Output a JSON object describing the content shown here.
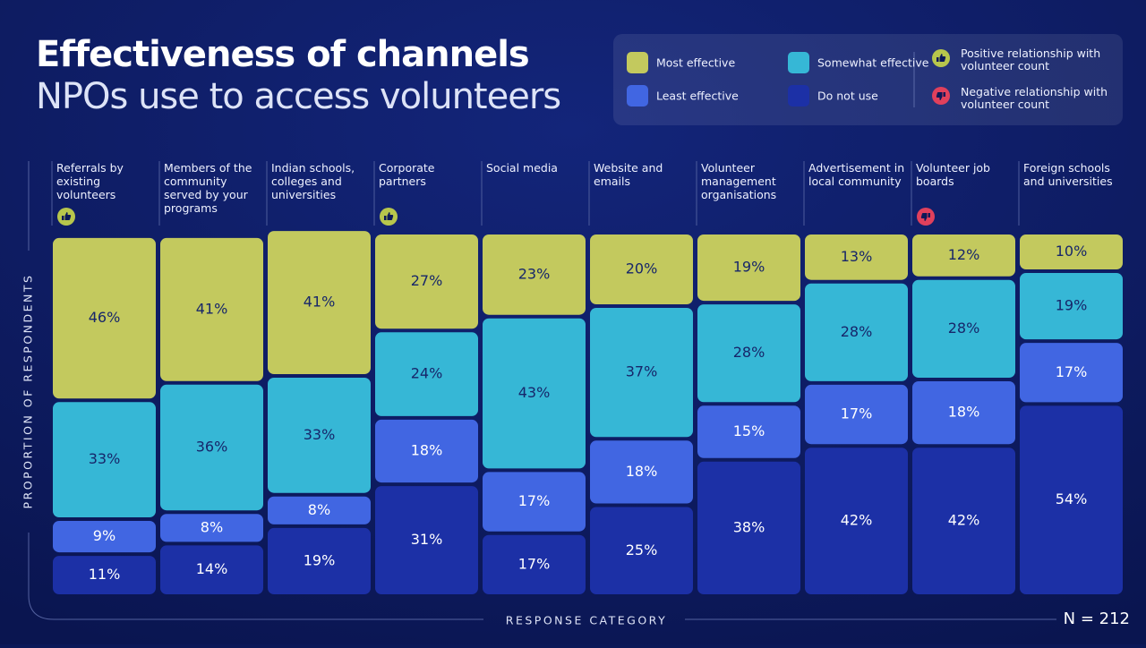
{
  "chart_data": {
    "type": "stacked-bar",
    "title": "Effectiveness of channels",
    "subtitle": "NPOs use to access volunteers",
    "y_label": "PROPORTION OF RESPONDENTS",
    "x_label": "RESPONSE CATEGORY",
    "note": "N = 212",
    "categories": [
      "Referrals by existing volunteers",
      "Members of the community served by your programs",
      "Indian schools, colleges and universities",
      "Corporate partners",
      "Social media",
      "Website and emails",
      "Volunteer management organisations",
      "Advertisement in local community",
      "Volunteer job boards",
      "Foreign schools and universities"
    ],
    "relationships": [
      "positive",
      null,
      null,
      "positive",
      null,
      null,
      null,
      null,
      "negative",
      null
    ],
    "relationship_legend": [
      {
        "kind": "positive",
        "label": "Positive relationship with volunteer count",
        "color": "#b7c64c"
      },
      {
        "kind": "negative",
        "label": "Negative relationship with volunteer count",
        "color": "#e0405c"
      }
    ],
    "ylim": [
      0,
      100
    ],
    "series": [
      {
        "name": "Most effective",
        "color": "#c3c95e",
        "values": [
          46,
          41,
          41,
          27,
          23,
          20,
          19,
          13,
          12,
          10
        ],
        "value_labels": [
          "46%",
          "41%",
          "41%",
          "27%",
          "23%",
          "20%",
          "19%",
          "13%",
          "12%",
          "10%"
        ]
      },
      {
        "name": "Somewhat effective",
        "color": "#36b7d6",
        "values": [
          33,
          36,
          33,
          24,
          43,
          37,
          28,
          28,
          28,
          19
        ],
        "value_labels": [
          "33%",
          "36%",
          "33%",
          "24%",
          "43%",
          "37%",
          "28%",
          "28%",
          "28%",
          "19%"
        ]
      },
      {
        "name": "Least effective",
        "color": "#4166e2",
        "values": [
          9,
          8,
          8,
          18,
          17,
          18,
          15,
          17,
          18,
          17
        ],
        "value_labels": [
          "9%",
          "8%",
          "8%",
          "18%",
          "17%",
          "18%",
          "15%",
          "17%",
          "18%",
          "17%"
        ]
      },
      {
        "name": "Do not use",
        "color": "#1c30a6",
        "values": [
          11,
          14,
          19,
          31,
          17,
          25,
          38,
          42,
          42,
          54
        ],
        "value_labels": [
          "11%",
          "14%",
          "19%",
          "31%",
          "17%",
          "25%",
          "38%",
          "42%",
          "42%",
          "54%"
        ]
      }
    ]
  }
}
